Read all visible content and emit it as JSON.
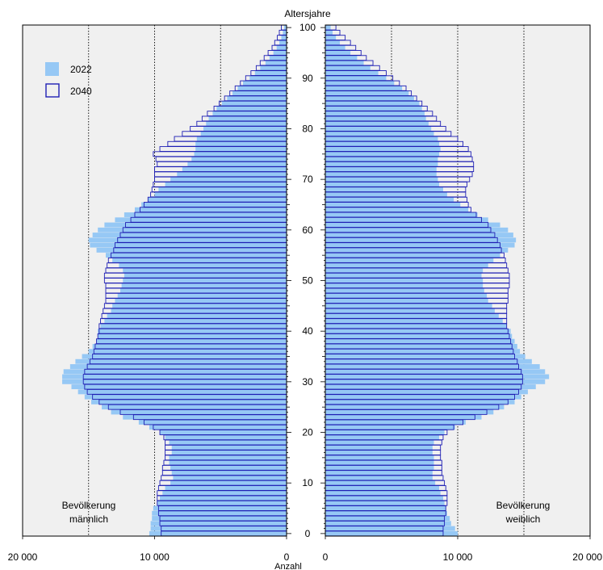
{
  "chart_data": {
    "type": "bar",
    "subtype": "population-pyramid",
    "orientation": "horizontal",
    "y_axis_label": "Altersjahre",
    "x_axis_label": "Anzahl",
    "y_ticks": [
      0,
      10,
      20,
      30,
      40,
      50,
      60,
      70,
      80,
      90,
      100
    ],
    "x_tick_labels_left": [
      "20 000",
      "10 000",
      "0"
    ],
    "x_tick_labels_right": [
      "0",
      "10 000",
      "20 000"
    ],
    "x_range_each_side": [
      0,
      20000
    ],
    "grid": "dotted vertical lines at 5000, 10000, 15000",
    "panel_labels": {
      "left": [
        "Bevölkerung",
        "männlich"
      ],
      "right": [
        "Bevölkerung",
        "weiblich"
      ]
    },
    "legend": {
      "placement": "top-left",
      "entries": [
        {
          "name": "2022",
          "style": "filled",
          "color": "#96c8f5"
        },
        {
          "name": "2040",
          "style": "outline",
          "color": "#1f1fb4"
        }
      ]
    },
    "colors": {
      "fill_2022": "#96c8f5",
      "outline_2040": "#1f1fb4",
      "panel_background": "#f0f0f0"
    },
    "ages": [
      0,
      1,
      2,
      3,
      4,
      5,
      6,
      7,
      8,
      9,
      10,
      11,
      12,
      13,
      14,
      15,
      16,
      17,
      18,
      19,
      20,
      21,
      22,
      23,
      24,
      25,
      26,
      27,
      28,
      29,
      30,
      31,
      32,
      33,
      34,
      35,
      36,
      37,
      38,
      39,
      40,
      41,
      42,
      43,
      44,
      45,
      46,
      47,
      48,
      49,
      50,
      51,
      52,
      53,
      54,
      55,
      56,
      57,
      58,
      59,
      60,
      61,
      62,
      63,
      64,
      65,
      66,
      67,
      68,
      69,
      70,
      71,
      72,
      73,
      74,
      75,
      76,
      77,
      78,
      79,
      80,
      81,
      82,
      83,
      84,
      85,
      86,
      87,
      88,
      89,
      90,
      91,
      92,
      93,
      94,
      95,
      96,
      97,
      98,
      99,
      100
    ],
    "series": [
      {
        "name": "2022",
        "side": "male",
        "values": [
          10400,
          10300,
          10300,
          10200,
          10200,
          10100,
          9800,
          9600,
          9400,
          9200,
          8800,
          8600,
          8700,
          8800,
          8900,
          8900,
          8700,
          8700,
          8900,
          9200,
          9600,
          10400,
          11200,
          12400,
          13300,
          14000,
          14800,
          15300,
          15800,
          16300,
          17000,
          17000,
          16900,
          16400,
          16000,
          15500,
          15000,
          14700,
          14400,
          14300,
          14300,
          14100,
          13800,
          13600,
          13300,
          13200,
          13000,
          12800,
          12600,
          12500,
          12400,
          12300,
          12400,
          12700,
          13200,
          13700,
          14400,
          14900,
          15000,
          14700,
          14300,
          13800,
          13000,
          12300,
          11500,
          11000,
          10500,
          10000,
          9700,
          9200,
          8800,
          8300,
          7900,
          7500,
          7200,
          7000,
          6900,
          6900,
          6800,
          6500,
          6300,
          6100,
          5900,
          5600,
          5300,
          4900,
          4500,
          4100,
          3700,
          3300,
          2800,
          2400,
          2000,
          1600,
          1300,
          1000,
          750,
          550,
          400,
          280,
          180
        ]
      },
      {
        "name": "2040",
        "side": "male",
        "values": [
          9500,
          9500,
          9600,
          9600,
          9700,
          9700,
          9800,
          9800,
          9800,
          9700,
          9600,
          9500,
          9400,
          9400,
          9300,
          9200,
          9200,
          9200,
          9200,
          9300,
          9600,
          10100,
          10800,
          11600,
          12600,
          13500,
          14200,
          14700,
          15100,
          15300,
          15400,
          15400,
          15300,
          15100,
          14900,
          14700,
          14600,
          14500,
          14400,
          14300,
          14200,
          14200,
          14100,
          14000,
          13900,
          13800,
          13700,
          13700,
          13700,
          13700,
          13800,
          13800,
          13700,
          13600,
          13500,
          13300,
          13100,
          13000,
          12800,
          12600,
          12400,
          12200,
          11800,
          11500,
          11100,
          10800,
          10500,
          10300,
          10200,
          10100,
          10000,
          10000,
          10000,
          9800,
          9900,
          10100,
          9600,
          9000,
          8500,
          7900,
          7300,
          6800,
          6400,
          6000,
          5500,
          5100,
          4700,
          4300,
          3900,
          3500,
          3100,
          2700,
          2300,
          2000,
          1700,
          1400,
          1100,
          900,
          700,
          550,
          400
        ]
      },
      {
        "name": "2022",
        "side": "female",
        "values": [
          10000,
          9800,
          9500,
          9400,
          9200,
          9100,
          9000,
          8900,
          8700,
          8600,
          8300,
          8100,
          8100,
          8200,
          8200,
          8200,
          8100,
          8100,
          8200,
          8600,
          9000,
          9800,
          10600,
          11800,
          12700,
          13500,
          14300,
          14800,
          15300,
          15900,
          16600,
          16900,
          16600,
          16200,
          15600,
          15100,
          14700,
          14500,
          14300,
          14100,
          14000,
          13700,
          13400,
          13100,
          12800,
          12600,
          12300,
          12200,
          12000,
          11900,
          11900,
          11800,
          11900,
          12300,
          12700,
          13200,
          13800,
          14300,
          14400,
          14200,
          13800,
          13200,
          12300,
          11500,
          10800,
          10200,
          9700,
          9200,
          8900,
          8600,
          8500,
          8400,
          8400,
          8500,
          8500,
          8600,
          8700,
          8600,
          8500,
          8200,
          8000,
          7800,
          7600,
          7500,
          7300,
          7100,
          6700,
          6300,
          5800,
          5200,
          4600,
          4000,
          3400,
          2900,
          2400,
          1900,
          1500,
          1100,
          800,
          550,
          400
        ]
      },
      {
        "name": "2040",
        "side": "female",
        "values": [
          8900,
          8900,
          9000,
          9000,
          9100,
          9100,
          9200,
          9200,
          9200,
          9100,
          9000,
          8900,
          8800,
          8800,
          8800,
          8700,
          8700,
          8700,
          8800,
          8900,
          9200,
          9700,
          10400,
          11300,
          12200,
          13100,
          13800,
          14300,
          14600,
          14800,
          14900,
          14900,
          14800,
          14600,
          14500,
          14300,
          14200,
          14100,
          14000,
          13900,
          13800,
          13700,
          13700,
          13700,
          13700,
          13700,
          13800,
          13800,
          13800,
          13900,
          13900,
          13900,
          13800,
          13700,
          13600,
          13500,
          13300,
          13200,
          13000,
          12800,
          12500,
          12300,
          11800,
          11400,
          11000,
          10800,
          10700,
          10600,
          10600,
          10700,
          10900,
          11100,
          11200,
          11200,
          11100,
          11000,
          10800,
          10400,
          10000,
          9500,
          9100,
          8700,
          8400,
          8100,
          7700,
          7300,
          6900,
          6500,
          6100,
          5600,
          5100,
          4600,
          4100,
          3600,
          3100,
          2700,
          2300,
          1900,
          1500,
          1100,
          800
        ]
      }
    ]
  }
}
